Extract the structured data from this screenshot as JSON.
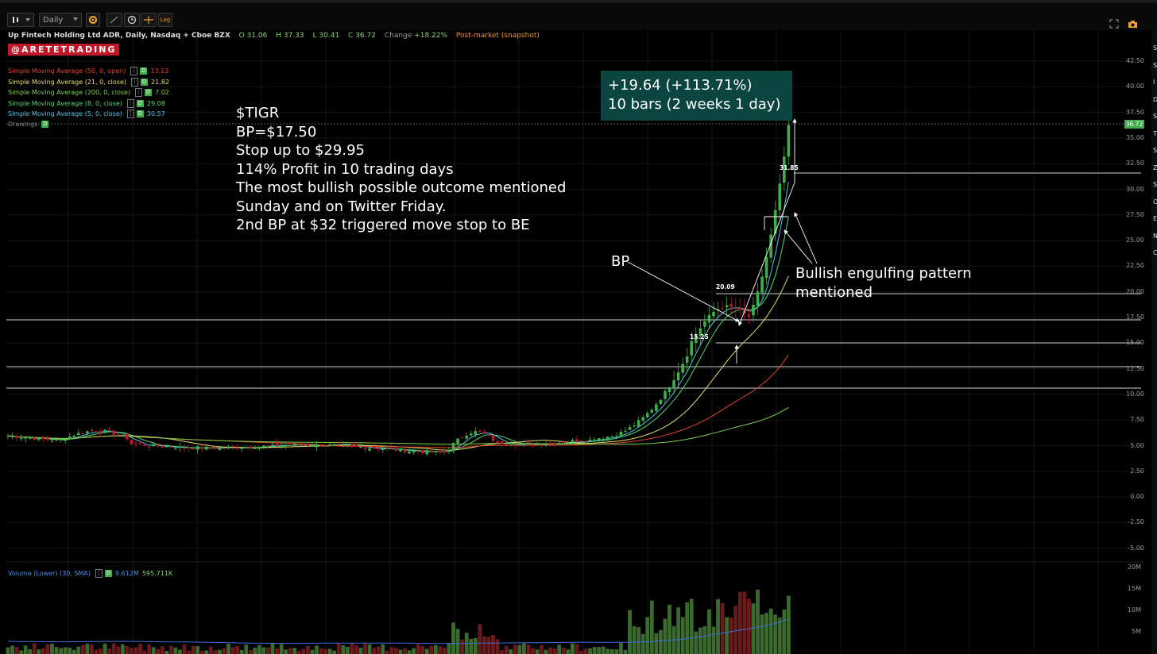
{
  "toolbar": {
    "timeframe": "Daily",
    "log_label": "Log"
  },
  "header": {
    "symbol_desc": "Up Fintech Holding Ltd ADR, Daily, Nasdaq + Cboe BZX",
    "open": "O 31.06",
    "high": "H 37.33",
    "low": "L 30.41",
    "close": "C 36.72",
    "change_label": "Change",
    "change_value": "+18.22%",
    "post_market": "Post-market (snapshot)"
  },
  "badge": "@ARETETRADING",
  "moving_averages": [
    {
      "label": "Simple Moving Average (50, 0, open)",
      "value": "13.13",
      "color": "#e0442c"
    },
    {
      "label": "Simple Moving Average (21, 0, close)",
      "value": "21.82",
      "color": "#e8e070"
    },
    {
      "label": "Simple Moving Average (200, 0, close)",
      "value": "7.02",
      "color": "#7ed04b"
    },
    {
      "label": "Simple Moving Average (8, 0, close)",
      "value": "29.08",
      "color": "#52d873"
    },
    {
      "label": "Simple Moving Average (5, 0, close)",
      "value": "30.57",
      "color": "#4fc3e8"
    }
  ],
  "drawings_label": "Drawings",
  "annotation": "$TIGR\nBP=$17.50\nStop up to $29.95\n114% Profit in 10 trading days\nThe most bullish possible outcome mentioned\nSunday and on Twitter Friday.\n2nd BP at $32 triggered move stop to BE",
  "callout": {
    "line1": "+19.64 (+113.71%)",
    "line2": "10 bars (2 weeks 1 day)"
  },
  "bp_label": "BP",
  "engulfing_label": "Bullish engulfing pattern\nmentioned",
  "level_labels": {
    "high_31": "31.85",
    "high_20": "20.09",
    "high_15": "15.25"
  },
  "last_price": "36.72",
  "price_axis": [
    "42.50",
    "40.00",
    "37.50",
    "35.00",
    "32.50",
    "30.00",
    "27.50",
    "25.00",
    "22.50",
    "20.00",
    "17.50",
    "15.00",
    "12.50",
    "10.00",
    "7.50",
    "5.00",
    "2.50",
    "0.00",
    "-2.50",
    "-5.00"
  ],
  "volume": {
    "label": "Volume (Lower) (30, SMA)",
    "value1": "9.612M",
    "value2": "595.711K",
    "axis": [
      "20M",
      "15M",
      "10M",
      "5M"
    ]
  },
  "right_strip_letters": [
    "S",
    "S",
    "I",
    "D",
    "S",
    "T",
    "S",
    "Z",
    "S",
    "O",
    "E",
    "N",
    "C"
  ],
  "colors": {
    "up": "#3fae49",
    "down": "#c0172a",
    "callout_bg": "#0c4440",
    "background": "#000000"
  }
}
